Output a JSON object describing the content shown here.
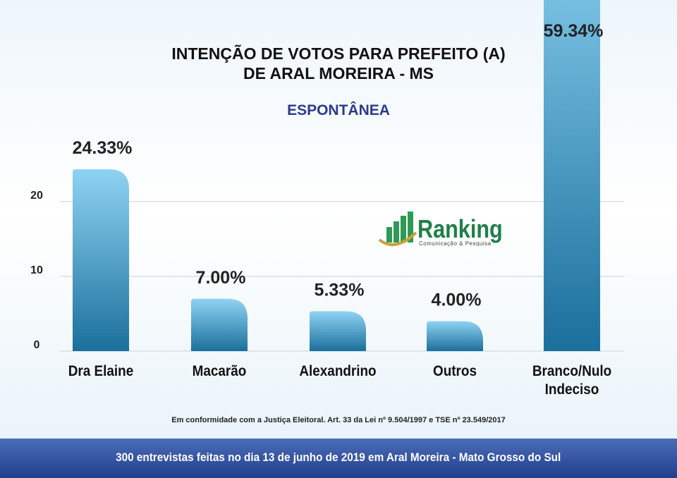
{
  "chart_data": {
    "type": "bar",
    "title": "INTENÇÃO DE VOTOS PARA PREFEITO (A)\nDE ARAL MOREIRA - MS",
    "subtitle": "ESPONTÂNEA",
    "categories": [
      "Dra Elaine",
      "Macarão",
      "Alexandrino",
      "Outros",
      "Branco/Nulo\nIndeciso"
    ],
    "values": [
      24.33,
      7.0,
      5.33,
      4.0,
      59.34
    ],
    "value_labels": [
      "24.33%",
      "7.00%",
      "5.33%",
      "4.00%",
      "59.34%"
    ],
    "color": "#3a9fcf",
    "ylim": [
      0,
      40
    ],
    "yticks": [
      0,
      10,
      20
    ],
    "grid": true
  },
  "logo": {
    "name": "Ranking",
    "tagline": "Comunicação & Pesquisa"
  },
  "footnote": "Em conformidade com a Justiça Eleitoral. Art. 33 da Lei nº 9.504/1997 e TSE nº 23.549/2017",
  "footer": "300 entrevistas feitas no dia 13 de junho de 2019 em Aral Moreira  - Mato Grosso do Sul"
}
